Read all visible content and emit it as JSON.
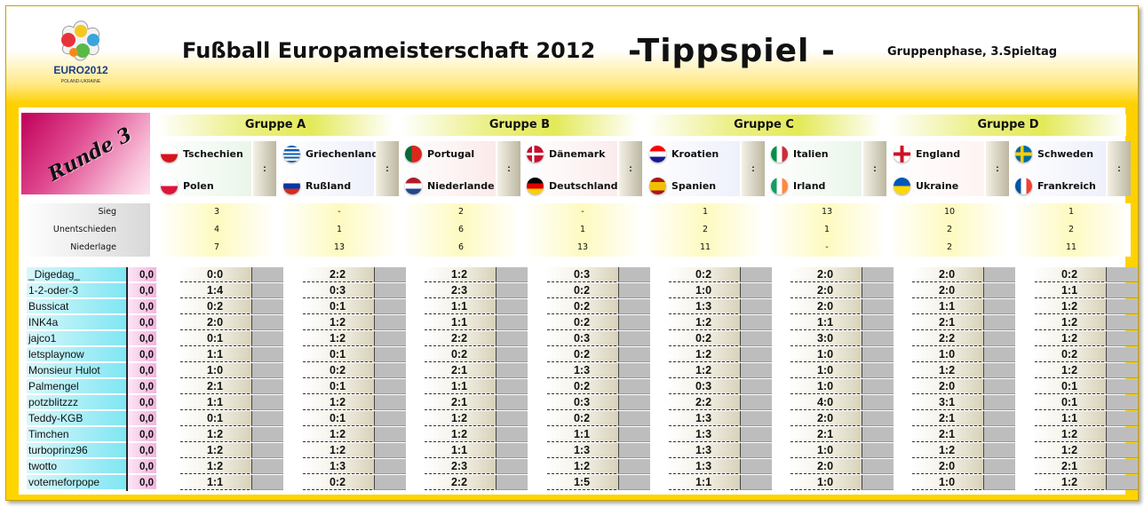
{
  "header": {
    "title": "Fußball Europameisterschaft 2012",
    "tippspiel": "-Tippspiel -",
    "phase": "Gruppenphase, 3.Spieltag",
    "logo_text": "EURO2012",
    "logo_sub": "POLAND-UKRAINE"
  },
  "round_label": "Runde 3",
  "groups": [
    "Gruppe A",
    "Gruppe B",
    "Gruppe C",
    "Gruppe D"
  ],
  "colon": ":",
  "stat_labels": [
    "Sieg",
    "Unentschieden",
    "Niederlage"
  ],
  "matches": [
    {
      "home": "Tschechien",
      "away": "Polen",
      "home_flag": "czech-flag",
      "away_flag": "poland-flag",
      "stats": [
        "3",
        "4",
        "7"
      ]
    },
    {
      "home": "Griechenland",
      "away": "Rußland",
      "home_flag": "greece-flag",
      "away_flag": "russia-flag",
      "stats": [
        "-",
        "1",
        "13"
      ]
    },
    {
      "home": "Portugal",
      "away": "Niederlande",
      "home_flag": "portugal-flag",
      "away_flag": "netherlands-flag",
      "stats": [
        "2",
        "6",
        "6"
      ]
    },
    {
      "home": "Dänemark",
      "away": "Deutschland",
      "home_flag": "denmark-flag",
      "away_flag": "germany-flag",
      "stats": [
        "-",
        "1",
        "13"
      ]
    },
    {
      "home": "Kroatien",
      "away": "Spanien",
      "home_flag": "croatia-flag",
      "away_flag": "spain-flag",
      "stats": [
        "1",
        "2",
        "11"
      ]
    },
    {
      "home": "Italien",
      "away": "Irland",
      "home_flag": "italy-flag",
      "away_flag": "ireland-flag",
      "stats": [
        "13",
        "1",
        "-"
      ]
    },
    {
      "home": "England",
      "away": "Ukraine",
      "home_flag": "england-flag",
      "away_flag": "ukraine-flag",
      "stats": [
        "10",
        "2",
        "2"
      ]
    },
    {
      "home": "Schweden",
      "away": "Frankreich",
      "home_flag": "sweden-flag",
      "away_flag": "france-flag",
      "stats": [
        "1",
        "2",
        "11"
      ]
    }
  ],
  "players": [
    {
      "name": "_Digedag_",
      "points": "0,0",
      "tips": [
        "0:0",
        "2:2",
        "1:2",
        "0:3",
        "0:2",
        "2:0",
        "2:0",
        "0:2"
      ]
    },
    {
      "name": "1-2-oder-3",
      "points": "0,0",
      "tips": [
        "1:4",
        "0:3",
        "2:3",
        "0:2",
        "1:0",
        "2:0",
        "2:0",
        "1:1"
      ]
    },
    {
      "name": "Bussicat",
      "points": "0,0",
      "tips": [
        "0:2",
        "0:1",
        "1:1",
        "0:2",
        "1:3",
        "2:0",
        "1:1",
        "1:2"
      ]
    },
    {
      "name": "INK4a",
      "points": "0,0",
      "tips": [
        "2:0",
        "1:2",
        "1:1",
        "0:2",
        "1:2",
        "1:1",
        "2:1",
        "1:2"
      ]
    },
    {
      "name": "jajco1",
      "points": "0,0",
      "tips": [
        "0:1",
        "1:2",
        "2:2",
        "0:3",
        "0:2",
        "3:0",
        "2:2",
        "1:2"
      ]
    },
    {
      "name": "letsplaynow",
      "points": "0,0",
      "tips": [
        "1:1",
        "0:1",
        "0:2",
        "0:2",
        "1:2",
        "1:0",
        "1:0",
        "0:2"
      ]
    },
    {
      "name": "Monsieur Hulot",
      "points": "0,0",
      "tips": [
        "1:0",
        "0:2",
        "2:1",
        "1:3",
        "1:2",
        "1:0",
        "1:2",
        "1:2"
      ]
    },
    {
      "name": "Palmengel",
      "points": "0,0",
      "tips": [
        "2:1",
        "0:1",
        "1:1",
        "0:2",
        "0:3",
        "1:0",
        "2:0",
        "0:1"
      ]
    },
    {
      "name": "potzblitzzz",
      "points": "0,0",
      "tips": [
        "1:1",
        "1:2",
        "2:1",
        "0:3",
        "2:2",
        "4:0",
        "3:1",
        "0:1"
      ]
    },
    {
      "name": "Teddy-KGB",
      "points": "0,0",
      "tips": [
        "0:1",
        "0:1",
        "1:2",
        "0:2",
        "1:3",
        "2:0",
        "2:1",
        "1:1"
      ]
    },
    {
      "name": "Timchen",
      "points": "0,0",
      "tips": [
        "1:2",
        "1:2",
        "1:2",
        "1:1",
        "1:3",
        "2:1",
        "2:1",
        "1:2"
      ]
    },
    {
      "name": "turboprinz96",
      "points": "0,0",
      "tips": [
        "1:2",
        "1:2",
        "1:1",
        "1:3",
        "1:3",
        "1:0",
        "1:2",
        "1:2"
      ]
    },
    {
      "name": "twotto",
      "points": "0,0",
      "tips": [
        "1:2",
        "1:3",
        "2:3",
        "1:2",
        "1:3",
        "2:0",
        "2:0",
        "2:1"
      ]
    },
    {
      "name": "votemeforpope",
      "points": "0,0",
      "tips": [
        "1:1",
        "0:2",
        "2:2",
        "1:5",
        "1:1",
        "1:0",
        "1:0",
        "1:2"
      ]
    }
  ]
}
